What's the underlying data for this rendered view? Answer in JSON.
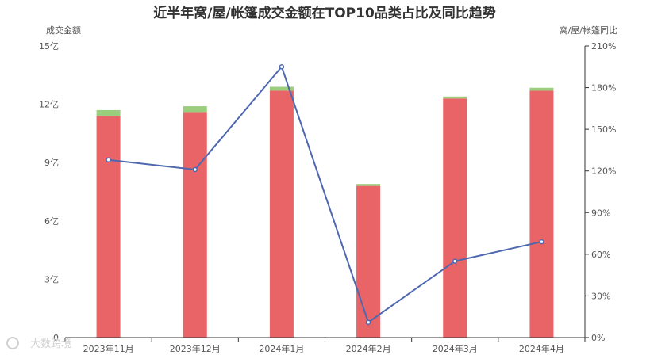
{
  "chart_data": {
    "type": "bar",
    "title": "近半年窝/屋/帐篷成交金额在TOP10品类占比及同比趋势",
    "ylabel_left": "成交金额",
    "ylabel_right": "窝/屋/帐篷同比",
    "categories": [
      "2023年11月",
      "2023年12月",
      "2024年1月",
      "2024年2月",
      "2024年3月",
      "2024年4月"
    ],
    "left_axis": {
      "min": 0,
      "max": 15,
      "interval": 3,
      "tick_labels": [
        "0",
        "3亿",
        "6亿",
        "9亿",
        "12亿",
        "15亿"
      ]
    },
    "right_axis": {
      "min": 0,
      "max": 210,
      "interval": 30,
      "tick_labels": [
        "0%",
        "30%",
        "60%",
        "90%",
        "120%",
        "150%",
        "180%",
        "210%"
      ]
    },
    "series": [
      {
        "type": "bar",
        "stack": "total",
        "color": "#e86467",
        "values": [
          11.4,
          11.6,
          12.7,
          7.8,
          12.3,
          12.7
        ]
      },
      {
        "type": "bar",
        "stack": "total",
        "color": "#9acd7e",
        "values": [
          0.3,
          0.3,
          0.2,
          0.1,
          0.1,
          0.15
        ]
      },
      {
        "type": "line",
        "axis": "right",
        "color": "#4e68b0",
        "values": [
          128,
          121,
          195,
          11,
          55,
          69
        ]
      }
    ],
    "grid": false
  },
  "watermark": {
    "text": "大数跨境"
  }
}
